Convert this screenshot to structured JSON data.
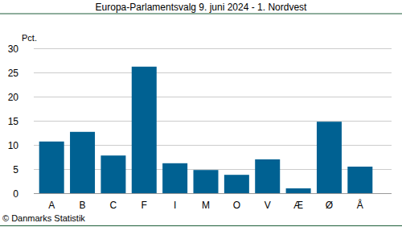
{
  "chart_data": {
    "type": "bar",
    "title": "Europa-Parlamentsvalg 9. juni 2024 - 1. Nordvest",
    "ylabel": "Pct.",
    "annotations": [
      "© Danmarks Statistik"
    ],
    "categories": [
      "A",
      "B",
      "C",
      "F",
      "I",
      "M",
      "O",
      "V",
      "Æ",
      "Ø",
      "Å"
    ],
    "values": [
      10.7,
      12.7,
      7.8,
      26.2,
      6.2,
      4.8,
      3.8,
      7.0,
      1.0,
      14.8,
      5.5
    ],
    "color": "#006192",
    "ylim": [
      0,
      30
    ],
    "yticks": [
      0,
      5,
      10,
      15,
      20,
      25,
      30
    ],
    "grid": true
  }
}
